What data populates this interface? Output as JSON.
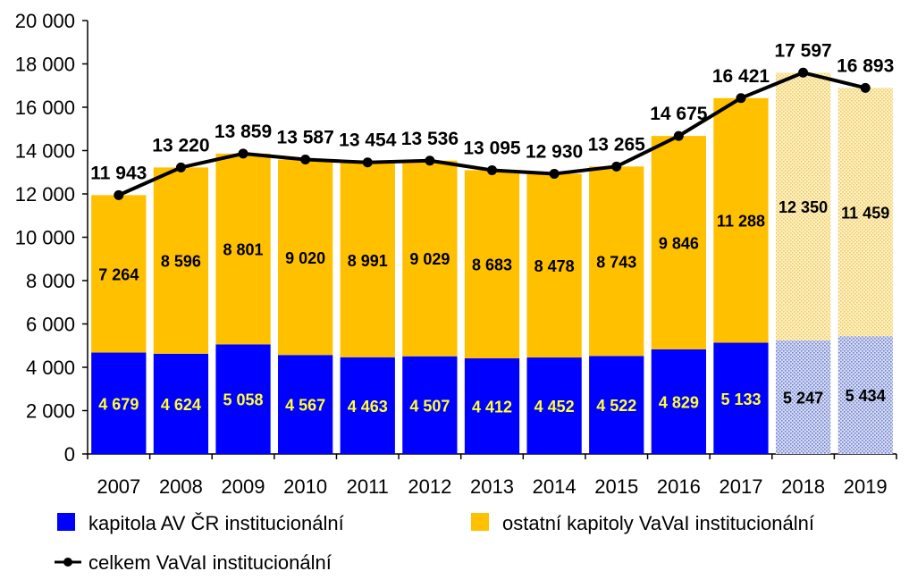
{
  "chart_data": {
    "type": "bar",
    "stacked": true,
    "title": "",
    "xlabel": "",
    "ylabel": "",
    "ylim": [
      0,
      20000
    ],
    "yticks": [
      0,
      2000,
      4000,
      6000,
      8000,
      10000,
      12000,
      14000,
      16000,
      18000,
      20000
    ],
    "ytick_labels": [
      "0",
      "2 000",
      "4 000",
      "6 000",
      "8 000",
      "10 000",
      "12 000",
      "14 000",
      "16 000",
      "18 000",
      "20 000"
    ],
    "categories": [
      "2007",
      "2008",
      "2009",
      "2010",
      "2011",
      "2012",
      "2013",
      "2014",
      "2015",
      "2016",
      "2017",
      "2018",
      "2019"
    ],
    "patterned_categories": [
      "2018",
      "2019"
    ],
    "series": [
      {
        "name": "kapitola AV ČR institucionální",
        "color": "#0000ff",
        "label_color": "#ffff33",
        "pattern_label_color": "#000000",
        "values": [
          4679,
          4624,
          5058,
          4567,
          4463,
          4507,
          4412,
          4452,
          4522,
          4829,
          5133,
          5247,
          5434
        ],
        "labels": [
          "4 679",
          "4 624",
          "5 058",
          "4 567",
          "4 463",
          "4 507",
          "4 412",
          "4 452",
          "4 522",
          "4 829",
          "5 133",
          "5 247",
          "5 434"
        ]
      },
      {
        "name": "ostatní kapitoly VaVaI institucionální",
        "color": "#ffc000",
        "label_color": "#000000",
        "pattern_label_color": "#000000",
        "values": [
          7264,
          8596,
          8801,
          9020,
          8991,
          9029,
          8683,
          8478,
          8743,
          9846,
          11288,
          12350,
          11459
        ],
        "labels": [
          "7 264",
          "8 596",
          "8 801",
          "9 020",
          "8 991",
          "9 029",
          "8 683",
          "8 478",
          "8 743",
          "9 846",
          "11 288",
          "12 350",
          "11 459"
        ]
      }
    ],
    "line": {
      "name": "celkem VaVaI institucionální",
      "color": "#000000",
      "values": [
        11943,
        13220,
        13859,
        13587,
        13454,
        13536,
        13095,
        12930,
        13265,
        14675,
        16421,
        17597,
        16893
      ],
      "labels": [
        "11 943",
        "13 220",
        "13 859",
        "13 587",
        "13 454",
        "13 536",
        "13 095",
        "12 930",
        "13 265",
        "14 675",
        "16 421",
        "17 597",
        "16 893"
      ]
    },
    "legend": {
      "position": "bottom"
    }
  }
}
